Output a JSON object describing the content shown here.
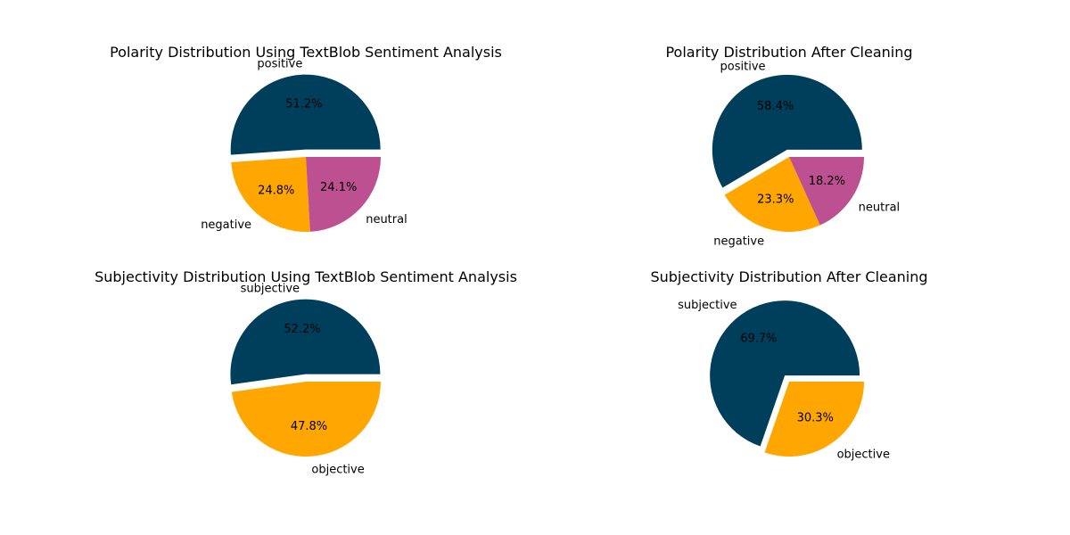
{
  "chart_data": [
    {
      "type": "pie",
      "title": "Polarity Distribution Using TextBlob Sentiment Analysis",
      "categories": [
        "positive",
        "negative",
        "neutral"
      ],
      "values": [
        51.2,
        24.8,
        24.1
      ],
      "percent_labels": [
        "51.2%",
        "24.8%",
        "24.1%"
      ],
      "colors": [
        "#003f5c",
        "#ffa600",
        "#bc5090"
      ],
      "exploded": [
        "positive"
      ],
      "legend": "none"
    },
    {
      "type": "pie",
      "title": "Polarity Distribution After Cleaning",
      "categories": [
        "positive",
        "negative",
        "neutral"
      ],
      "values": [
        58.4,
        23.3,
        18.2
      ],
      "percent_labels": [
        "58.4%",
        "23.3%",
        "18.2%"
      ],
      "colors": [
        "#003f5c",
        "#ffa600",
        "#bc5090"
      ],
      "exploded": [
        "positive"
      ],
      "legend": "none"
    },
    {
      "type": "pie",
      "title": "Subjectivity Distribution Using TextBlob Sentiment Analysis",
      "categories": [
        "subjective",
        "objective"
      ],
      "values": [
        52.2,
        47.8
      ],
      "percent_labels": [
        "52.2%",
        "47.8%"
      ],
      "colors": [
        "#003f5c",
        "#ffa600"
      ],
      "exploded": [
        "subjective"
      ],
      "legend": "none"
    },
    {
      "type": "pie",
      "title": "Subjectivity Distribution After Cleaning",
      "categories": [
        "subjective",
        "objective"
      ],
      "values": [
        69.7,
        30.3
      ],
      "percent_labels": [
        "69.7%",
        "30.3%"
      ],
      "colors": [
        "#003f5c",
        "#ffa600"
      ],
      "exploded": [
        "subjective"
      ],
      "legend": "none"
    }
  ]
}
